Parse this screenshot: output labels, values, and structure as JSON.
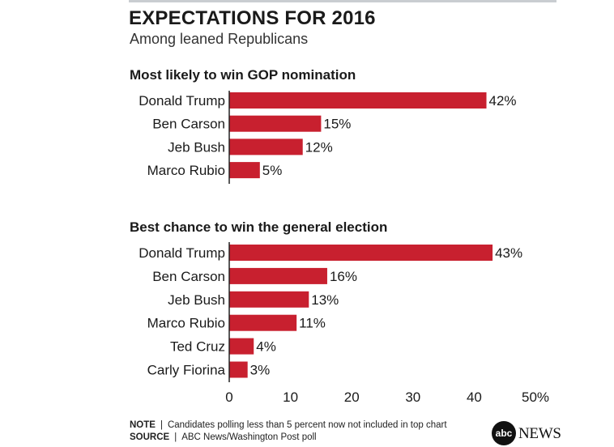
{
  "header": {
    "title": "EXPECTATIONS FOR 2016",
    "subtitle": "Among leaned Republicans"
  },
  "footer": {
    "note_label": "NOTE",
    "note_text": "Candidates polling less than 5 percent now not included in top chart",
    "source_label": "SOURCE",
    "source_text": "ABC News/Washington Post poll"
  },
  "logo": {
    "badge": "abc",
    "text": "NEWS"
  },
  "chart_data": [
    {
      "type": "bar",
      "orientation": "horizontal",
      "title": "Most likely to win GOP nomination",
      "categories": [
        "Donald Trump",
        "Ben Carson",
        "Jeb Bush",
        "Marco Rubio"
      ],
      "values": [
        42,
        15,
        12,
        5
      ],
      "value_labels": [
        "42%",
        "15%",
        "12%",
        "5%"
      ],
      "xlim": [
        0,
        50
      ],
      "bar_color": "#c8202f"
    },
    {
      "type": "bar",
      "orientation": "horizontal",
      "title": "Best chance to win the general election",
      "categories": [
        "Donald Trump",
        "Ben Carson",
        "Jeb Bush",
        "Marco Rubio",
        "Ted Cruz",
        "Carly Fiorina"
      ],
      "values": [
        43,
        16,
        13,
        11,
        4,
        3
      ],
      "value_labels": [
        "43%",
        "16%",
        "13%",
        "11%",
        "4%",
        "3%"
      ],
      "xlim": [
        0,
        50
      ],
      "x_ticks": [
        0,
        10,
        20,
        30,
        40,
        50
      ],
      "x_tick_labels": [
        "0",
        "10",
        "20",
        "30",
        "40",
        "50%"
      ],
      "bar_color": "#c8202f"
    }
  ]
}
